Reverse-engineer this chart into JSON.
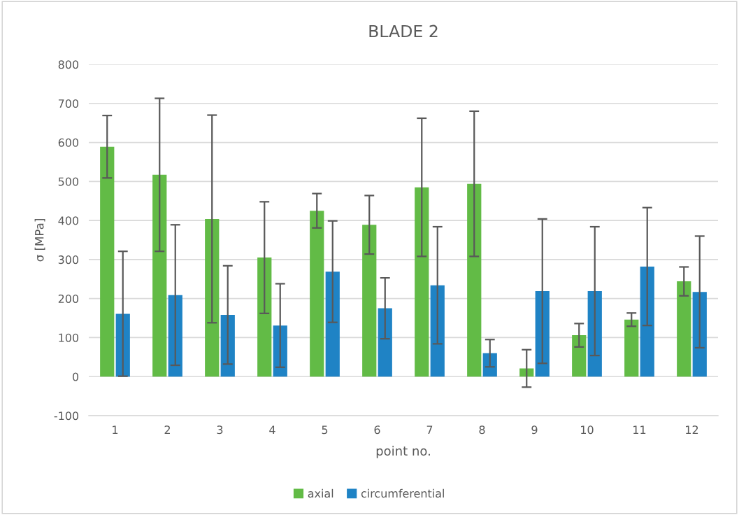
{
  "chart_data": {
    "type": "bar",
    "title": "BLADE 2",
    "xlabel": "point no.",
    "ylabel": "σ [MPa]",
    "categories": [
      "1",
      "2",
      "3",
      "4",
      "5",
      "6",
      "7",
      "8",
      "9",
      "10",
      "11",
      "12"
    ],
    "series": [
      {
        "name": "axial",
        "color": "#62bb46",
        "values": [
          589,
          517,
          404,
          305,
          425,
          389,
          485,
          494,
          21,
          106,
          146,
          244
        ],
        "errors": [
          80,
          196,
          266,
          143,
          44,
          75,
          177,
          186,
          48,
          30,
          17,
          37
        ]
      },
      {
        "name": "circumferential",
        "color": "#1f83c5",
        "values": [
          161,
          209,
          158,
          131,
          269,
          175,
          234,
          60,
          219,
          219,
          282,
          217
        ],
        "errors": [
          160,
          180,
          126,
          107,
          130,
          78,
          150,
          35,
          185,
          165,
          151,
          143
        ]
      }
    ],
    "ylim": [
      -100,
      800
    ],
    "yticks": [
      -100,
      0,
      100,
      200,
      300,
      400,
      500,
      600,
      700,
      800
    ],
    "grid": "y",
    "legend": "bottom"
  }
}
